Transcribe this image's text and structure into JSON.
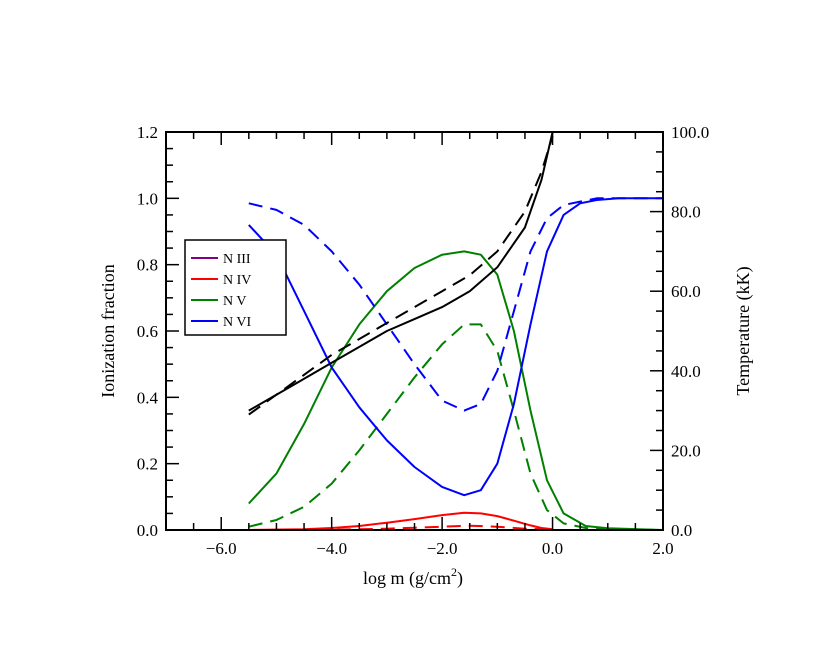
{
  "chart_data": {
    "type": "line",
    "xlabel": "log m (g/cm",
    "xlabel_sup": "2",
    "xlabel_close": ")",
    "ylabel": "Ionization fraction",
    "y2label": "Temperature (kK)",
    "xlim": [
      -7.0,
      2.0
    ],
    "ylim": [
      0.0,
      1.2
    ],
    "y2lim": [
      0.0,
      100.0
    ],
    "xticks": [
      -6.0,
      -4.0,
      -2.0,
      0.0,
      2.0
    ],
    "xtick_labels": [
      "−6.0",
      "−4.0",
      "−2.0",
      "0.0",
      "2.0"
    ],
    "yticks": [
      0.0,
      0.2,
      0.4,
      0.6,
      0.8,
      1.0,
      1.2
    ],
    "ytick_labels": [
      "0.0",
      "0.2",
      "0.4",
      "0.6",
      "0.8",
      "1.0",
      "1.2"
    ],
    "y2ticks": [
      0.0,
      20.0,
      40.0,
      60.0,
      80.0,
      100.0
    ],
    "y2tick_labels": [
      "0.0",
      "20.0",
      "40.0",
      "60.0",
      "80.0",
      "100.0"
    ],
    "legend": {
      "placement": "upper-left",
      "entries": [
        {
          "label": "N III",
          "color": "#800080"
        },
        {
          "label": "N IV",
          "color": "#ff0000"
        },
        {
          "label": "N V",
          "color": "#008000"
        },
        {
          "label": "N VI",
          "color": "#0000ff"
        }
      ]
    },
    "series": [
      {
        "name": "N IV solid",
        "color": "#ff0000",
        "dash": "solid",
        "axis": "left",
        "x": [
          -5.5,
          -4.5,
          -4,
          -3.5,
          -3,
          -2.5,
          -2,
          -1.6,
          -1.3,
          -1,
          -0.7,
          -0.4,
          -0.2,
          0
        ],
        "y": [
          0.0,
          0.002,
          0.006,
          0.012,
          0.022,
          0.033,
          0.045,
          0.052,
          0.05,
          0.042,
          0.028,
          0.014,
          0.006,
          0.002
        ]
      },
      {
        "name": "N IV dashed",
        "color": "#ff0000",
        "dash": "dashed",
        "axis": "left",
        "x": [
          -5.5,
          -4,
          -3,
          -2.5,
          -2,
          -1.5,
          -1,
          -0.5,
          0
        ],
        "y": [
          0.0,
          0.001,
          0.004,
          0.007,
          0.01,
          0.013,
          0.01,
          0.004,
          0.001
        ]
      },
      {
        "name": "N V solid",
        "color": "#008000",
        "dash": "solid",
        "axis": "left",
        "x": [
          -5.5,
          -5,
          -4.5,
          -4,
          -3.5,
          -3,
          -2.5,
          -2,
          -1.6,
          -1.3,
          -1,
          -0.7,
          -0.4,
          -0.1,
          0.2,
          0.6,
          1,
          2
        ],
        "y": [
          0.08,
          0.17,
          0.32,
          0.49,
          0.62,
          0.72,
          0.79,
          0.83,
          0.84,
          0.83,
          0.77,
          0.6,
          0.36,
          0.15,
          0.05,
          0.012,
          0.005,
          0.0
        ]
      },
      {
        "name": "N V dashed",
        "color": "#008000",
        "dash": "dashed",
        "axis": "left",
        "x": [
          -5.5,
          -5,
          -4.5,
          -4,
          -3.5,
          -3,
          -2.5,
          -2,
          -1.6,
          -1.3,
          -1,
          -0.7,
          -0.4,
          -0.1,
          0.2,
          0.6,
          1,
          2
        ],
        "y": [
          0.01,
          0.03,
          0.07,
          0.14,
          0.24,
          0.35,
          0.46,
          0.56,
          0.62,
          0.62,
          0.54,
          0.36,
          0.17,
          0.06,
          0.02,
          0.006,
          0.002,
          0.0
        ]
      },
      {
        "name": "N VI solid",
        "color": "#0000ff",
        "dash": "solid",
        "axis": "left",
        "x": [
          -5.5,
          -5,
          -4.5,
          -4,
          -3.5,
          -3,
          -2.5,
          -2,
          -1.6,
          -1.3,
          -1,
          -0.7,
          -0.4,
          -0.1,
          0.2,
          0.5,
          0.8,
          1.2,
          2
        ],
        "y": [
          0.92,
          0.83,
          0.66,
          0.49,
          0.37,
          0.27,
          0.19,
          0.13,
          0.105,
          0.12,
          0.2,
          0.38,
          0.62,
          0.84,
          0.95,
          0.985,
          0.995,
          1.0,
          1.0
        ]
      },
      {
        "name": "N VI dashed",
        "color": "#0000ff",
        "dash": "dashed",
        "axis": "left",
        "x": [
          -5.5,
          -5,
          -4.5,
          -4,
          -3.5,
          -3,
          -2.5,
          -2,
          -1.6,
          -1.3,
          -1,
          -0.7,
          -0.4,
          -0.1,
          0.2,
          0.5,
          0.8,
          1.2,
          2
        ],
        "y": [
          0.985,
          0.965,
          0.92,
          0.84,
          0.74,
          0.62,
          0.5,
          0.39,
          0.36,
          0.38,
          0.48,
          0.66,
          0.84,
          0.94,
          0.98,
          0.99,
          1.0,
          1.0,
          1.0
        ]
      },
      {
        "name": "Temperature solid",
        "color": "#000000",
        "dash": "solid",
        "axis": "right",
        "x": [
          -5.5,
          -5,
          -4.5,
          -4,
          -3.5,
          -3,
          -2.5,
          -2,
          -1.5,
          -1,
          -0.5,
          -0.2,
          0
        ],
        "y": [
          30,
          34,
          38,
          42,
          46,
          50,
          53,
          56,
          60,
          66,
          76,
          88,
          100
        ]
      },
      {
        "name": "Temperature dashed",
        "color": "#000000",
        "dash": "dashed",
        "axis": "right",
        "x": [
          -5.5,
          -5,
          -4.5,
          -4,
          -3.5,
          -3,
          -2.5,
          -2,
          -1.5,
          -1,
          -0.5,
          -0.2,
          0
        ],
        "y": [
          29,
          34,
          39,
          44,
          48,
          52,
          56,
          60,
          64,
          70,
          80,
          90,
          99
        ]
      }
    ]
  }
}
